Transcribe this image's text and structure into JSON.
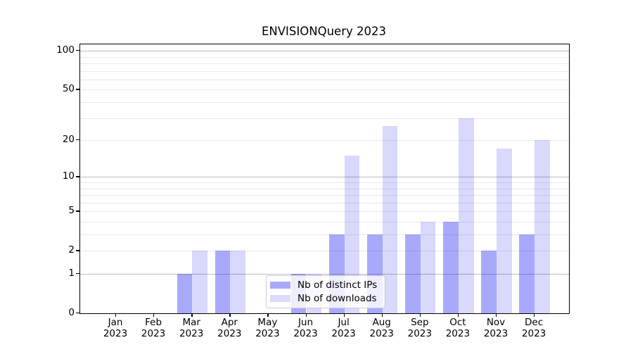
{
  "title": "ENVISIONQuery 2023",
  "chart_data": {
    "type": "bar",
    "title": "ENVISIONQuery 2023",
    "categories": [
      "Jan",
      "Feb",
      "Mar",
      "Apr",
      "May",
      "Jun",
      "Jul",
      "Aug",
      "Sep",
      "Oct",
      "Nov",
      "Dec"
    ],
    "year": "2023",
    "series": [
      {
        "name": "Nb of distinct IPs",
        "color": "#a9a9fa",
        "bar_color": "rgba(10,10,245,0.35)",
        "values": [
          0,
          0,
          1,
          2,
          0,
          1,
          3,
          3,
          3,
          4,
          2,
          3
        ]
      },
      {
        "name": "Nb of downloads",
        "color": "#dcdcfb",
        "bar_color": "rgba(10,10,245,0.155)",
        "values": [
          0,
          0,
          2,
          2,
          0,
          1,
          15,
          26,
          4,
          30,
          17,
          20
        ]
      }
    ],
    "y_ticks": [
      0,
      1,
      2,
      5,
      10,
      20,
      50,
      100
    ],
    "minor_gridlines": [
      2,
      3,
      4,
      5,
      6,
      7,
      8,
      9,
      20,
      30,
      40,
      50,
      60,
      70,
      80,
      90
    ],
    "major_gridlines": [
      1,
      10,
      100
    ],
    "y_scale": "log(1+y)",
    "ylim": [
      0,
      112
    ],
    "xlabel": "",
    "ylabel": "",
    "grid": "horizontal",
    "legend_position": "lower center-left inside plot"
  },
  "colors": {
    "distinct_ips": "#a9a9fa",
    "downloads": "#dcdcfb",
    "major_grid": "#bdbdbd",
    "minor_grid": "#e9e9e9",
    "axis": "#000000",
    "legend_border": "#cccccc"
  }
}
